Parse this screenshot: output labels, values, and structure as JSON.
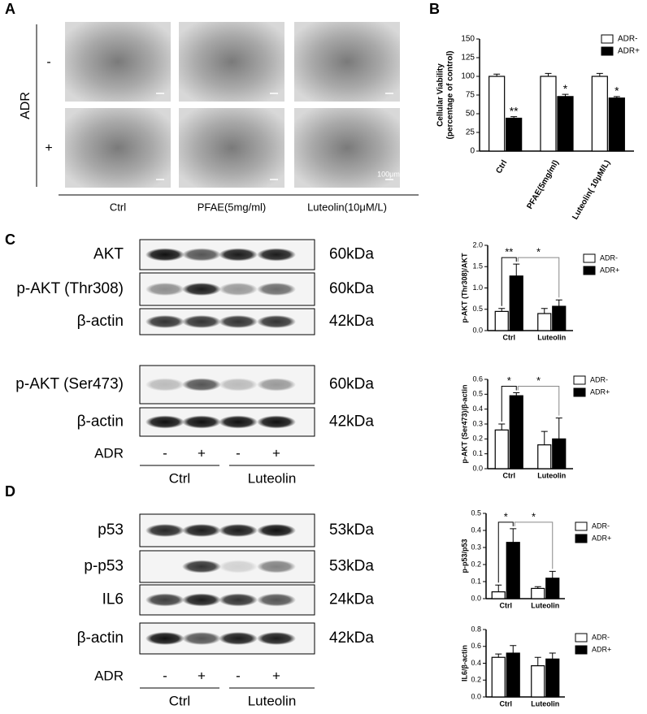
{
  "panels": {
    "a": "A",
    "b": "B",
    "c": "C",
    "d": "D"
  },
  "panel_a": {
    "row_title": "ADR",
    "rows": [
      "-",
      "+"
    ],
    "columns": [
      "Ctrl",
      "PFAE(5mg/ml)",
      "Luteolin(10μM/L)"
    ],
    "scale_bar": "100μm"
  },
  "blots_c": {
    "rows": [
      {
        "label": "AKT",
        "size": "60kDa"
      },
      {
        "label": "p-AKT (Thr308)",
        "size": "60kDa"
      },
      {
        "label": "β-actin",
        "size": "42kDa"
      },
      {
        "label": "p-AKT (Ser473)",
        "size": "60kDa"
      },
      {
        "label": "β-actin",
        "size": "42kDa"
      }
    ],
    "lane_title": "ADR",
    "lanes": [
      "-",
      "+",
      "-",
      "+"
    ],
    "groups": [
      "Ctrl",
      "Luteolin"
    ]
  },
  "blots_d": {
    "rows": [
      {
        "label": "p53",
        "size": "53kDa"
      },
      {
        "label": "p-p53",
        "size": "53kDa"
      },
      {
        "label": "IL6",
        "size": "24kDa"
      },
      {
        "label": "β-actin",
        "size": "42kDa"
      }
    ],
    "lane_title": "ADR",
    "lanes": [
      "-",
      "+",
      "-",
      "+"
    ],
    "groups": [
      "Ctrl",
      "Luteolin"
    ]
  },
  "chart_data": [
    {
      "type": "bar",
      "ylabel": [
        "Cellular Viability",
        "(percentage of control)"
      ],
      "categories": [
        "Ctrl",
        "PFAE(5mg/ml)",
        "Luteolin( 10μM/L)"
      ],
      "series": [
        {
          "name": "ADR-",
          "color": "#ffffff",
          "values": [
            100,
            100,
            100
          ],
          "errors": [
            3,
            4,
            4
          ]
        },
        {
          "name": "ADR+",
          "color": "#000000",
          "values": [
            44,
            73,
            71
          ],
          "errors": [
            2,
            3,
            2
          ],
          "annotations": [
            "**",
            "*",
            "*"
          ]
        }
      ],
      "ylim": [
        0,
        150
      ],
      "yticks": [
        0,
        25,
        50,
        75,
        100,
        125,
        150
      ]
    },
    {
      "type": "bar",
      "ylabel": [
        "p-AKT (Thr308)/AKT"
      ],
      "categories": [
        "Ctrl",
        "Luteolin"
      ],
      "series": [
        {
          "name": "ADR-",
          "color": "#ffffff",
          "values": [
            0.45,
            0.4
          ],
          "errors": [
            0.07,
            0.12
          ]
        },
        {
          "name": "ADR+",
          "color": "#000000",
          "values": [
            1.28,
            0.57
          ],
          "errors": [
            0.28,
            0.15
          ]
        }
      ],
      "significance": [
        "**",
        "*"
      ],
      "ylim": [
        0,
        2
      ],
      "yticks": [
        {
          "value": 0,
          "label": "0.0"
        },
        0.5,
        {
          "value": 1,
          "label": "1.0"
        },
        1.5,
        {
          "value": 2,
          "label": "2.0"
        }
      ]
    },
    {
      "type": "bar",
      "ylabel": [
        "p-AKT (Ser473)/β-actin"
      ],
      "categories": [
        "Ctrl",
        "Luteolin"
      ],
      "series": [
        {
          "name": "ADR-",
          "color": "#ffffff",
          "values": [
            0.26,
            0.16
          ],
          "errors": [
            0.04,
            0.09
          ]
        },
        {
          "name": "ADR+",
          "color": "#000000",
          "values": [
            0.49,
            0.2
          ],
          "errors": [
            0.02,
            0.14
          ]
        }
      ],
      "significance": [
        "*",
        "*"
      ],
      "ylim": [
        0,
        0.6
      ],
      "yticks": [
        {
          "value": 0,
          "label": "0.0"
        },
        0.1,
        0.2,
        0.3,
        0.4,
        0.5,
        0.6
      ]
    },
    {
      "type": "bar",
      "ylabel": [
        "p-p53/p53"
      ],
      "categories": [
        "Ctrl",
        "Luteolin"
      ],
      "series": [
        {
          "name": "ADR-",
          "color": "#ffffff",
          "values": [
            0.04,
            0.06
          ],
          "errors": [
            0.04,
            0.01
          ]
        },
        {
          "name": "ADR+",
          "color": "#000000",
          "values": [
            0.33,
            0.12
          ],
          "errors": [
            0.08,
            0.04
          ]
        }
      ],
      "significance": [
        "*",
        "*"
      ],
      "ylim": [
        0,
        0.5
      ],
      "yticks": [
        {
          "value": 0,
          "label": "0.0"
        },
        0.1,
        0.2,
        0.3,
        0.4,
        0.5
      ]
    },
    {
      "type": "bar",
      "ylabel": [
        "IL6/β-actin"
      ],
      "categories": [
        "Ctrl",
        "Luteolin"
      ],
      "series": [
        {
          "name": "ADR-",
          "color": "#ffffff",
          "values": [
            0.47,
            0.37
          ],
          "errors": [
            0.04,
            0.1
          ]
        },
        {
          "name": "ADR+",
          "color": "#000000",
          "values": [
            0.52,
            0.45
          ],
          "errors": [
            0.09,
            0.07
          ]
        }
      ],
      "ylim": [
        0,
        0.8
      ],
      "yticks": [
        {
          "value": 0,
          "label": "0.0"
        },
        0.2,
        0.4,
        0.6,
        0.8
      ]
    }
  ]
}
